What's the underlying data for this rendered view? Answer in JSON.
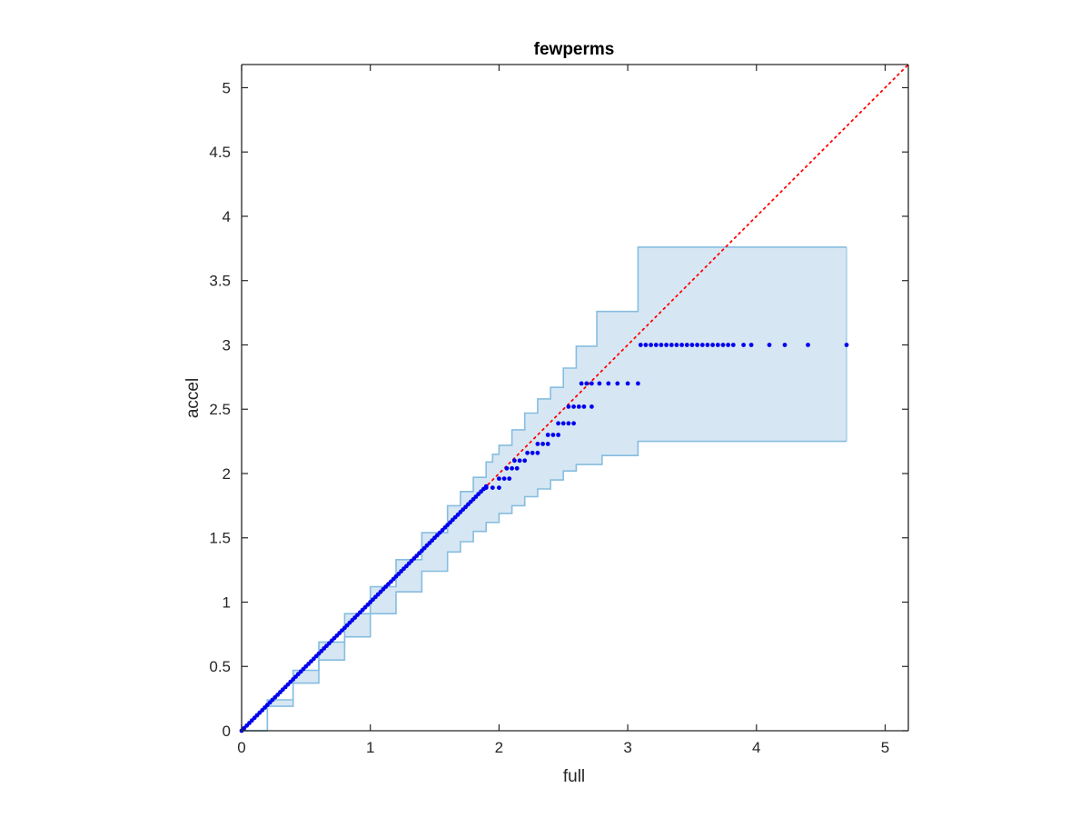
{
  "chart_data": {
    "type": "scatter",
    "title": "fewperms",
    "xlabel": "full",
    "ylabel": "accel",
    "xlim": [
      0,
      5.18
    ],
    "ylim": [
      0,
      5.18
    ],
    "xticks": [
      "0",
      "1",
      "2",
      "3",
      "4",
      "5"
    ],
    "yticks": [
      "0",
      "0.5",
      "1",
      "1.5",
      "2",
      "2.5",
      "3",
      "3.5",
      "4",
      "4.5",
      "5"
    ],
    "grid": false,
    "legend": "none",
    "colors": {
      "points": "#0000ee",
      "reference_line": "#ff0000",
      "band_fill": "#d6e7f3",
      "band_edge": "#86bde0",
      "axes": "#262626"
    },
    "reference_line": {
      "x": [
        0,
        5.18
      ],
      "y": [
        0,
        5.18
      ],
      "style": "dotted"
    },
    "band": {
      "upper": [
        [
          0,
          0
        ],
        [
          0.2,
          0.24
        ],
        [
          0.4,
          0.47
        ],
        [
          0.6,
          0.69
        ],
        [
          0.8,
          0.91
        ],
        [
          1.0,
          1.12
        ],
        [
          1.2,
          1.33
        ],
        [
          1.4,
          1.54
        ],
        [
          1.6,
          1.75
        ],
        [
          1.7,
          1.86
        ],
        [
          1.8,
          1.97
        ],
        [
          1.9,
          2.09
        ],
        [
          1.95,
          2.15
        ],
        [
          2.0,
          2.22
        ],
        [
          2.1,
          2.34
        ],
        [
          2.2,
          2.47
        ],
        [
          2.3,
          2.58
        ],
        [
          2.4,
          2.67
        ],
        [
          2.5,
          2.82
        ],
        [
          2.6,
          2.99
        ],
        [
          2.76,
          3.26
        ],
        [
          3.08,
          3.76
        ],
        [
          4.7,
          3.76
        ]
      ],
      "lower": [
        [
          0,
          0
        ],
        [
          0.2,
          0.19
        ],
        [
          0.4,
          0.37
        ],
        [
          0.6,
          0.55
        ],
        [
          0.8,
          0.73
        ],
        [
          1.0,
          0.91
        ],
        [
          1.2,
          1.08
        ],
        [
          1.4,
          1.24
        ],
        [
          1.6,
          1.39
        ],
        [
          1.7,
          1.47
        ],
        [
          1.8,
          1.55
        ],
        [
          1.9,
          1.62
        ],
        [
          2.0,
          1.69
        ],
        [
          2.1,
          1.75
        ],
        [
          2.2,
          1.82
        ],
        [
          2.3,
          1.88
        ],
        [
          2.4,
          1.95
        ],
        [
          2.5,
          2.02
        ],
        [
          2.6,
          2.07
        ],
        [
          2.8,
          2.14
        ],
        [
          3.08,
          2.25
        ],
        [
          4.7,
          2.25
        ]
      ]
    },
    "curve_points": {
      "x_start": 0,
      "x_end": 1.9,
      "step": 0.02,
      "slope": 1.0
    },
    "step_points": [
      {
        "x": [
          1.9,
          1.95,
          2.0
        ],
        "y": 1.89
      },
      {
        "x": [
          2.0,
          2.04,
          2.08
        ],
        "y": 1.96
      },
      {
        "x": [
          2.06,
          2.1,
          2.14
        ],
        "y": 2.04
      },
      {
        "x": [
          2.12,
          2.16,
          2.2
        ],
        "y": 2.1
      },
      {
        "x": [
          2.22,
          2.26,
          2.3
        ],
        "y": 2.16
      },
      {
        "x": [
          2.3,
          2.34,
          2.38
        ],
        "y": 2.23
      },
      {
        "x": [
          2.38,
          2.42,
          2.46
        ],
        "y": 2.3
      },
      {
        "x": [
          2.46,
          2.5,
          2.54,
          2.58
        ],
        "y": 2.39
      },
      {
        "x": [
          2.54,
          2.58,
          2.62,
          2.66,
          2.72
        ],
        "y": 2.52
      },
      {
        "x": [
          2.64,
          2.68,
          2.72,
          2.78,
          2.85,
          2.92,
          3.0,
          3.08
        ],
        "y": 2.7
      },
      {
        "x": [
          3.1,
          3.14,
          3.18,
          3.22,
          3.26,
          3.3,
          3.34,
          3.38,
          3.42,
          3.46,
          3.5,
          3.54,
          3.58,
          3.62,
          3.66,
          3.7,
          3.74,
          3.78,
          3.82,
          3.9,
          3.96,
          4.1,
          4.22,
          4.4,
          4.7
        ],
        "y": 3.0
      }
    ]
  }
}
